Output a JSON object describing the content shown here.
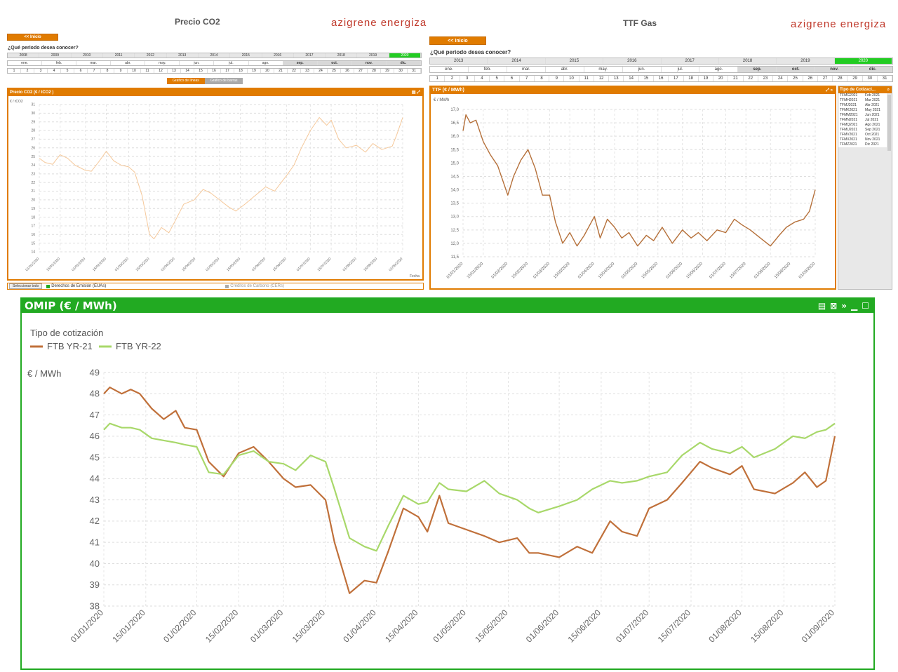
{
  "co2": {
    "title": "Precio CO2",
    "logo": "azigrene energiza",
    "inicio": "<< Inicio",
    "question": "¿Qué periodo desea conocer?",
    "years": [
      "2008",
      "2009",
      "2010",
      "2011",
      "2012",
      "2013",
      "2014",
      "2015",
      "2016",
      "2017",
      "2018",
      "2019",
      "2020"
    ],
    "selected_year": "2020",
    "months": [
      "ene.",
      "feb.",
      "mar.",
      "abr.",
      "may.",
      "jun.",
      "jul.",
      "ago.",
      "sep.",
      "oct.",
      "nov.",
      "dic."
    ],
    "days": [
      "1",
      "2",
      "3",
      "4",
      "5",
      "6",
      "7",
      "8",
      "9",
      "10",
      "11",
      "12",
      "13",
      "14",
      "15",
      "16",
      "17",
      "18",
      "19",
      "20",
      "21",
      "22",
      "23",
      "24",
      "25",
      "26",
      "27",
      "28",
      "29",
      "30",
      "31"
    ],
    "btn_lineas": "Gráfico de líneas",
    "btn_barras": "Gráfico de barras",
    "panel_title": "Precio CO2 (€ / tCO2 )",
    "ylabel": "€ / tCO2",
    "xlabel": "Fecha",
    "select_all": "Seleccionar todo",
    "legend_euas": "Derechos de Emisión (EUAs)",
    "legend_cers": "Créditos de Carbono (CERs)",
    "colors": {
      "line": "#f5c89a",
      "accent": "#e07b00"
    }
  },
  "ttf": {
    "title": "TTF Gas",
    "logo": "azigrene energiza",
    "inicio": "<< Inicio",
    "question": "¿Qué periodo desea conocer?",
    "years": [
      "2013",
      "2014",
      "2015",
      "2016",
      "2017",
      "2018",
      "2019",
      "2020"
    ],
    "selected_year": "2020",
    "months": [
      "ene.",
      "feb.",
      "mar.",
      "abr.",
      "may.",
      "jun.",
      "jul.",
      "ago.",
      "sep.",
      "oct.",
      "nov.",
      "dic."
    ],
    "days": [
      "1",
      "2",
      "3",
      "4",
      "5",
      "6",
      "7",
      "8",
      "9",
      "10",
      "11",
      "12",
      "13",
      "14",
      "15",
      "16",
      "17",
      "18",
      "19",
      "20",
      "21",
      "22",
      "23",
      "24",
      "25",
      "26",
      "27",
      "28",
      "29",
      "30",
      "31"
    ],
    "panel_title": "TTF (€ / MWh)",
    "ylabel": "€ / MWh",
    "tipo_title": "Tipo de Cotizaci...",
    "tipo_items": [
      {
        "code": "TFMG2021",
        "label": "Feb 2021"
      },
      {
        "code": "TFMH2021",
        "label": "Mar 2021"
      },
      {
        "code": "TFMJ2021",
        "label": "Abr 2021"
      },
      {
        "code": "TFMK2021",
        "label": "May 2021"
      },
      {
        "code": "TFMM2021",
        "label": "Jun 2021"
      },
      {
        "code": "TFMN2021",
        "label": "Jul 2021"
      },
      {
        "code": "TFMQ2021",
        "label": "Ago 2021"
      },
      {
        "code": "TFMU2021",
        "label": "Sep 2021"
      },
      {
        "code": "TFMV2021",
        "label": "Oct 2021"
      },
      {
        "code": "TFMX2021",
        "label": "Nov 2021"
      },
      {
        "code": "TFMZ2021",
        "label": "Dic 2021"
      }
    ],
    "colors": {
      "line": "#b5703a"
    }
  },
  "omip": {
    "panel_title": "OMIP (€ / MWh)",
    "legend_title": "Tipo de cotización",
    "ylabel": "€ / MWh",
    "colors": {
      "accent": "#22aa22",
      "s1": "#c0703a",
      "s2": "#a8d86a"
    }
  },
  "chart_data": [
    {
      "type": "line",
      "title": "Precio CO2 (€ / tCO2 )",
      "ylabel": "€ / tCO2",
      "xlabel": "Fecha",
      "ylim": [
        14,
        31
      ],
      "yticks": [
        14,
        15,
        16,
        17,
        18,
        19,
        20,
        21,
        22,
        23,
        24,
        25,
        26,
        27,
        28,
        29,
        30,
        31
      ],
      "x_ticks": [
        "01/01/2020",
        "15/01/2020",
        "01/02/2020",
        "15/02/2020",
        "01/03/2020",
        "15/03/2020",
        "01/04/2020",
        "15/04/2020",
        "01/05/2020",
        "15/05/2020",
        "01/06/2020",
        "15/06/2020",
        "01/07/2020",
        "15/07/2020",
        "01/08/2020",
        "15/08/2020",
        "01/09/2020"
      ],
      "grid": true,
      "series": [
        {
          "name": "Derechos de Emisión (EUAs)",
          "x": [
            "01/01/2020",
            "05/01/2020",
            "10/01/2020",
            "15/01/2020",
            "20/01/2020",
            "25/01/2020",
            "01/02/2020",
            "05/02/2020",
            "10/02/2020",
            "15/02/2020",
            "20/02/2020",
            "25/02/2020",
            "01/03/2020",
            "05/03/2020",
            "10/03/2020",
            "15/03/2020",
            "18/03/2020",
            "23/03/2020",
            "28/03/2020",
            "01/04/2020",
            "07/04/2020",
            "14/04/2020",
            "20/04/2020",
            "25/04/2020",
            "01/05/2020",
            "07/05/2020",
            "12/05/2020",
            "18/05/2020",
            "25/05/2020",
            "01/06/2020",
            "07/06/2020",
            "15/06/2020",
            "20/06/2020",
            "25/06/2020",
            "01/07/2020",
            "07/07/2020",
            "12/07/2020",
            "15/07/2020",
            "20/07/2020",
            "25/07/2020",
            "01/08/2020",
            "07/08/2020",
            "12/08/2020",
            "18/08/2020",
            "25/08/2020",
            "28/08/2020",
            "01/09/2020"
          ],
          "values": [
            24.8,
            24.3,
            24.1,
            25.2,
            24.8,
            24.0,
            23.4,
            23.3,
            24.4,
            25.6,
            24.5,
            24.0,
            23.8,
            23.2,
            20.5,
            16.0,
            15.5,
            16.8,
            16.2,
            17.5,
            19.5,
            20.0,
            21.2,
            20.8,
            20.0,
            19.2,
            18.7,
            19.5,
            20.5,
            21.5,
            21.0,
            22.8,
            24.0,
            26.0,
            28.0,
            29.5,
            28.6,
            29.2,
            27.0,
            26.0,
            26.3,
            25.5,
            26.5,
            25.8,
            26.2,
            27.5,
            29.5
          ]
        }
      ]
    },
    {
      "type": "line",
      "title": "TTF (€ / MWh)",
      "ylabel": "€ / MWh",
      "ylim": [
        11.5,
        17.0
      ],
      "yticks": [
        11.5,
        12.0,
        12.5,
        13.0,
        13.5,
        14.0,
        14.5,
        15.0,
        15.5,
        16.0,
        16.5,
        17.0
      ],
      "x_ticks": [
        "01/01/2020",
        "15/01/2020",
        "01/02/2020",
        "15/02/2020",
        "01/03/2020",
        "15/03/2020",
        "01/04/2020",
        "15/04/2020",
        "01/05/2020",
        "15/05/2020",
        "01/06/2020",
        "15/06/2020",
        "01/07/2020",
        "15/07/2020",
        "01/08/2020",
        "15/08/2020",
        "01/09/2020"
      ],
      "grid": true,
      "series": [
        {
          "x": [
            "01/01/2020",
            "03/01/2020",
            "06/01/2020",
            "10/01/2020",
            "15/01/2020",
            "20/01/2020",
            "25/01/2020",
            "01/02/2020",
            "05/02/2020",
            "10/02/2020",
            "15/02/2020",
            "20/02/2020",
            "25/02/2020",
            "01/03/2020",
            "05/03/2020",
            "10/03/2020",
            "15/03/2020",
            "20/03/2020",
            "25/03/2020",
            "01/04/2020",
            "05/04/2020",
            "10/04/2020",
            "15/04/2020",
            "20/04/2020",
            "25/04/2020",
            "01/05/2020",
            "07/05/2020",
            "12/05/2020",
            "18/05/2020",
            "25/05/2020",
            "01/06/2020",
            "07/06/2020",
            "12/06/2020",
            "18/06/2020",
            "25/06/2020",
            "01/07/2020",
            "07/07/2020",
            "12/07/2020",
            "18/07/2020",
            "25/07/2020",
            "01/08/2020",
            "07/08/2020",
            "12/08/2020",
            "18/08/2020",
            "24/08/2020",
            "28/08/2020",
            "01/09/2020"
          ],
          "values": [
            16.2,
            16.8,
            16.5,
            16.6,
            15.8,
            15.3,
            14.9,
            13.8,
            14.5,
            15.1,
            15.5,
            14.8,
            13.8,
            13.8,
            12.8,
            12.0,
            12.4,
            11.9,
            12.3,
            13.0,
            12.2,
            12.9,
            12.6,
            12.2,
            12.4,
            11.9,
            12.3,
            12.1,
            12.6,
            12.0,
            12.5,
            12.2,
            12.4,
            12.1,
            12.5,
            12.4,
            12.9,
            12.7,
            12.5,
            12.2,
            11.9,
            12.3,
            12.6,
            12.8,
            12.9,
            13.2,
            14.0
          ]
        }
      ]
    },
    {
      "type": "line",
      "title": "OMIP (€ / MWh)",
      "legend_title": "Tipo de cotización",
      "ylabel": "€ / MWh",
      "ylim": [
        38,
        49
      ],
      "yticks": [
        38,
        39,
        40,
        41,
        42,
        43,
        44,
        45,
        46,
        47,
        48,
        49
      ],
      "legend": "top-left",
      "grid": true,
      "x_ticks": [
        "01/01/2020",
        "15/01/2020",
        "01/02/2020",
        "15/02/2020",
        "01/03/2020",
        "15/03/2020",
        "01/04/2020",
        "15/04/2020",
        "01/05/2020",
        "15/05/2020",
        "01/06/2020",
        "15/06/2020",
        "01/07/2020",
        "15/07/2020",
        "01/08/2020",
        "15/08/2020",
        "01/09/2020"
      ],
      "series": [
        {
          "name": "FTB YR-21",
          "x": [
            "01/01/2020",
            "03/01/2020",
            "07/01/2020",
            "10/01/2020",
            "13/01/2020",
            "17/01/2020",
            "21/01/2020",
            "25/01/2020",
            "28/01/2020",
            "01/02/2020",
            "05/02/2020",
            "10/02/2020",
            "15/02/2020",
            "20/02/2020",
            "25/02/2020",
            "01/03/2020",
            "05/03/2020",
            "10/03/2020",
            "15/03/2020",
            "18/03/2020",
            "23/03/2020",
            "28/03/2020",
            "01/04/2020",
            "05/04/2020",
            "10/04/2020",
            "15/04/2020",
            "18/04/2020",
            "22/04/2020",
            "25/04/2020",
            "01/05/2020",
            "07/05/2020",
            "12/05/2020",
            "18/05/2020",
            "22/05/2020",
            "25/05/2020",
            "01/06/2020",
            "07/06/2020",
            "12/06/2020",
            "18/06/2020",
            "22/06/2020",
            "27/06/2020",
            "01/07/2020",
            "07/07/2020",
            "12/07/2020",
            "18/07/2020",
            "22/07/2020",
            "28/07/2020",
            "01/08/2020",
            "05/08/2020",
            "12/08/2020",
            "18/08/2020",
            "22/08/2020",
            "26/08/2020",
            "29/08/2020",
            "01/09/2020"
          ],
          "values": [
            48.0,
            48.3,
            48.0,
            48.2,
            48.0,
            47.3,
            46.8,
            47.2,
            46.4,
            46.3,
            44.8,
            44.1,
            45.2,
            45.5,
            44.8,
            44.0,
            43.6,
            43.7,
            43.0,
            41.0,
            38.6,
            39.2,
            39.1,
            40.6,
            42.6,
            42.2,
            41.5,
            43.2,
            41.9,
            41.6,
            41.3,
            41.0,
            41.2,
            40.5,
            40.5,
            40.3,
            40.8,
            40.5,
            42.0,
            41.5,
            41.3,
            42.6,
            43.0,
            43.8,
            44.8,
            44.5,
            44.2,
            44.6,
            43.5,
            43.3,
            43.8,
            44.3,
            43.6,
            43.9,
            46.0
          ]
        },
        {
          "name": "FTB YR-22",
          "x": [
            "01/01/2020",
            "03/01/2020",
            "07/01/2020",
            "10/01/2020",
            "13/01/2020",
            "17/01/2020",
            "21/01/2020",
            "25/01/2020",
            "28/01/2020",
            "01/02/2020",
            "05/02/2020",
            "10/02/2020",
            "15/02/2020",
            "20/02/2020",
            "25/02/2020",
            "01/03/2020",
            "05/03/2020",
            "10/03/2020",
            "15/03/2020",
            "18/03/2020",
            "23/03/2020",
            "28/03/2020",
            "01/04/2020",
            "05/04/2020",
            "10/04/2020",
            "15/04/2020",
            "18/04/2020",
            "22/04/2020",
            "25/04/2020",
            "01/05/2020",
            "07/05/2020",
            "12/05/2020",
            "18/05/2020",
            "22/05/2020",
            "25/05/2020",
            "01/06/2020",
            "07/06/2020",
            "12/06/2020",
            "18/06/2020",
            "22/06/2020",
            "27/06/2020",
            "01/07/2020",
            "07/07/2020",
            "12/07/2020",
            "18/07/2020",
            "22/07/2020",
            "28/07/2020",
            "01/08/2020",
            "05/08/2020",
            "12/08/2020",
            "18/08/2020",
            "22/08/2020",
            "26/08/2020",
            "29/08/2020",
            "01/09/2020"
          ],
          "values": [
            46.3,
            46.6,
            46.4,
            46.4,
            46.3,
            45.9,
            45.8,
            45.7,
            45.6,
            45.5,
            44.3,
            44.2,
            45.1,
            45.3,
            44.8,
            44.7,
            44.4,
            45.1,
            44.8,
            43.5,
            41.2,
            40.8,
            40.6,
            41.8,
            43.2,
            42.8,
            42.9,
            43.8,
            43.5,
            43.4,
            43.9,
            43.3,
            43.0,
            42.6,
            42.4,
            42.7,
            43.0,
            43.5,
            43.9,
            43.8,
            43.9,
            44.1,
            44.3,
            45.1,
            45.7,
            45.4,
            45.2,
            45.5,
            45.0,
            45.4,
            46.0,
            45.9,
            46.2,
            46.3,
            46.6
          ]
        }
      ]
    }
  ]
}
